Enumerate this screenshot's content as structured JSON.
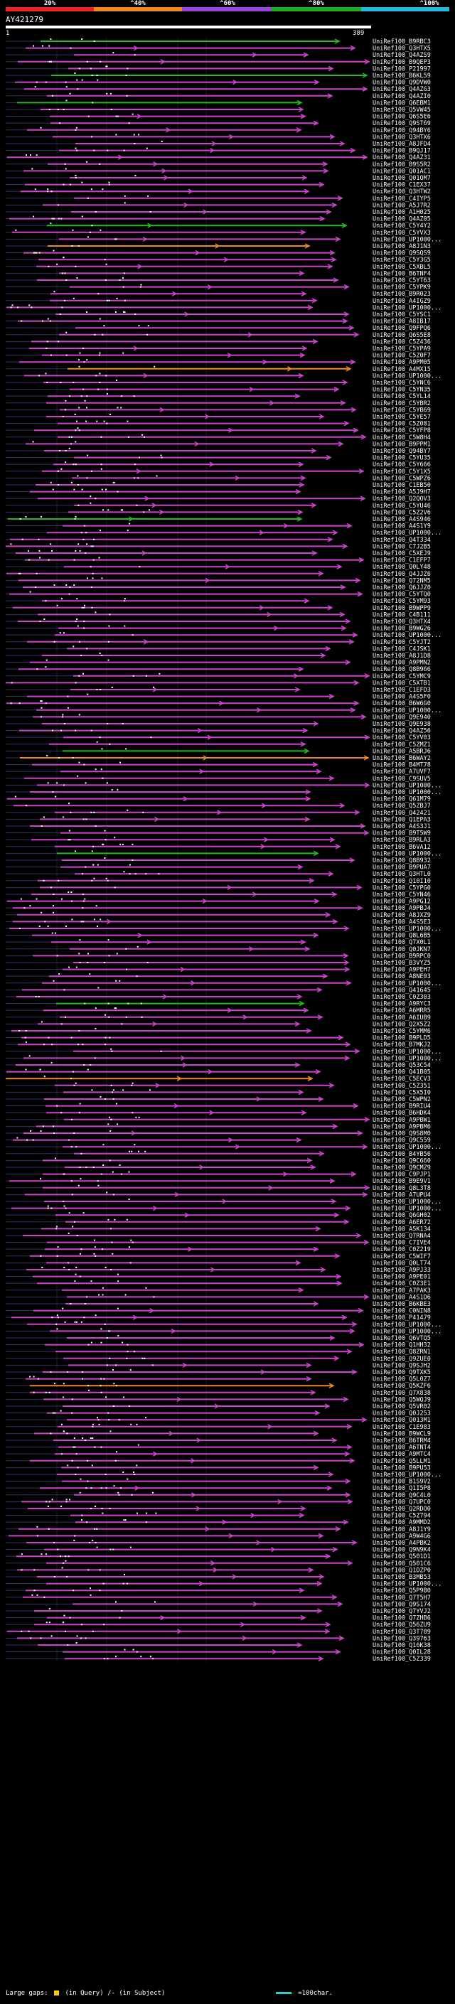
{
  "scale": {
    "labels": [
      "20%",
      "^40%",
      "^60%",
      "^80%",
      "^100%"
    ],
    "colors": [
      "#ee2222",
      "#ee8822",
      "#9944dd",
      "#22aa22",
      "#22bbdd"
    ]
  },
  "query": {
    "id": "AY421279",
    "start": "1",
    "end": "389"
  },
  "colors": {
    "background": "#000000",
    "hit": "#cc44cc",
    "hit_high": "#22bb22",
    "hit_mid": "#ee8822",
    "gap": "#333366",
    "marker": "#ffffff"
  },
  "footer": {
    "large_gaps_label": "Large gaps:",
    "in_query": "(in Query)",
    "in_subject": "/- (in Subject)",
    "scale_label": "=100char."
  },
  "hits": [
    "UniRef100_B9RBC3",
    "UniRef100_Q3HTX5",
    "UniRef100_Q4AZS9",
    "UniRef100_B9QEP3",
    "UniRef100_P21997",
    "UniRef100_B6KL59",
    "UniRef100_Q9DVW0",
    "UniRef100_Q4AZG3",
    "UniRef100_Q4AZI0",
    "UniRef100_Q6EBM1",
    "UniRef100_Q5VW45",
    "UniRef100_Q6S5E6",
    "UniRef100_Q9ST69",
    "UniRef100_Q94BY6",
    "UniRef100_Q3HTX6",
    "UniRef100_A8JFD4",
    "UniRef100_B9QJ17",
    "UniRef100_Q4AZ31",
    "UniRef100_B9S5R2",
    "UniRef100_Q01AC1",
    "UniRef100_Q01OM7",
    "UniRef100_C1EX37",
    "UniRef100_Q3HTW2",
    "UniRef100_C4IYP5",
    "UniRef100_A5J7R2",
    "UniRef100_A1H025",
    "UniRef100_Q4AZ05",
    "UniRef100_C5Y4Y2",
    "UniRef100_C5YVX3",
    "UniRef100_UP1000...",
    "UniRef100_A8J1N3",
    "UniRef100_Q9SQS9",
    "UniRef100_C5Y3G5",
    "UniRef100_C5XBL5",
    "UniRef100_B6TNF4",
    "UniRef100_C5YT63",
    "UniRef100_C5YPK9",
    "UniRef100_B9R023",
    "UniRef100_A4IGZ9",
    "UniRef100_UP1000...",
    "UniRef100_C5YSC1",
    "UniRef100_A8IB17",
    "UniRef100_Q9FPQ6",
    "UniRef100_Q6S5E8",
    "UniRef100_C5Z436",
    "UniRef100_C5YPA9",
    "UniRef100_C5Z0F7",
    "UniRef100_A9PM05",
    "UniRef100_A4MX15",
    "UniRef100_UP1000...",
    "UniRef100_C5YNC6",
    "UniRef100_C5YN35",
    "UniRef100_C5YL14",
    "UniRef100_C5YBR2",
    "UniRef100_C5YB69",
    "UniRef100_C5YE57",
    "UniRef100_C5Z081",
    "UniRef100_C5YFP8",
    "UniRef100_C5W8H4",
    "UniRef100_B9PPM1",
    "UniRef100_Q94BY7",
    "UniRef100_C5YU35",
    "UniRef100_C5Y666",
    "UniRef100_C5Y1X5",
    "UniRef100_C5WPZ6",
    "UniRef100_C1EB50",
    "UniRef100_A5J9H7",
    "UniRef100_Q2QOV3",
    "UniRef100_C5YU46",
    "UniRef100_C5Z2V6",
    "UniRef100_A4S946",
    "UniRef100_A4S1Y9",
    "UniRef100_UP1000...",
    "UniRef100_Q4T334",
    "UniRef100_C7J2B5",
    "UniRef100_C5XEJ9",
    "UniRef100_C1EFP7",
    "UniRef100_Q0LY48",
    "UniRef100_Q4JJZ6",
    "UniRef100_Q72NM5",
    "UniRef100_Q6JJZ0",
    "UniRef100_C5YTQ0",
    "UniRef100_C5YM93",
    "UniRef100_B9WPP9",
    "UniRef100_C4B111",
    "UniRef100_Q3HTX4",
    "UniRef100_B9WG26",
    "UniRef100_UP1000...",
    "UniRef100_C5YJT2",
    "UniRef100_C4JSK1",
    "UniRef100_A8J1D8",
    "UniRef100_A9PMN2",
    "UniRef100_Q8B966",
    "UniRef100_C5YMC9",
    "UniRef100_C5XTB1",
    "UniRef100_C1EFD3",
    "UniRef100_A4S5F0",
    "UniRef100_B6W6G0",
    "UniRef100_UP1000...",
    "UniRef100_Q9E940",
    "UniRef100_Q9E938",
    "UniRef100_Q4AZ56",
    "UniRef100_C5YV03",
    "UniRef100_C5ZMZ1",
    "UniRef100_A5BRJ6",
    "UniRef100_B6WAY2",
    "UniRef100_B4MT78",
    "UniRef100_A7UVF7",
    "UniRef100_C9SUV5",
    "UniRef100_UP1000...",
    "UniRef100_UP1000...",
    "UniRef100_Q61M79",
    "UniRef100_Q5ZBJ7",
    "UniRef100_Q42421",
    "UniRef100_Q1EPA3",
    "UniRef100_A4S3J1",
    "UniRef100_B9T5W9",
    "UniRef100_B9RLA3",
    "UniRef100_B6VA12",
    "UniRef100_UP1000...",
    "UniRef100_Q8B932",
    "UniRef100_B9PUA7",
    "UniRef100_Q3HTL0",
    "UniRef100_Q10I10",
    "UniRef100_C5YPG0",
    "UniRef100_C5YN46",
    "UniRef100_A9PG12",
    "UniRef100_A9PBJ4",
    "UniRef100_A8JXZ9",
    "UniRef100_A4S5E3",
    "UniRef100_UP1000...",
    "UniRef100_Q8L6B5",
    "UniRef100_Q7X0L1",
    "UniRef100_Q0JKN7",
    "UniRef100_B9RPC0",
    "UniRef100_B3VYZ5",
    "UniRef100_A9PEH7",
    "UniRef100_A8NE03",
    "UniRef100_UP1000...",
    "UniRef100_Q41645",
    "UniRef100_C0Z303",
    "UniRef100_A9RYC3",
    "UniRef100_A6MRR5",
    "UniRef100_A6IUB9",
    "UniRef100_Q2X5Z2",
    "UniRef100_C5YMM6",
    "UniRef100_B9PLD5",
    "UniRef100_B7MKJ2",
    "UniRef100_UP1000...",
    "UniRef100_UP1000...",
    "UniRef100_Q53C54",
    "UniRef100_Q41B05",
    "UniRef100_C5ECV3",
    "UniRef100_C5Z351",
    "UniRef100_C5X5I0",
    "UniRef100_C5WPN2",
    "UniRef100_B9RIU4",
    "UniRef100_B6HDK4",
    "UniRef100_A9PBW1",
    "UniRef100_A9PBM6",
    "UniRef100_Q9S8M0",
    "UniRef100_Q9C559",
    "UniRef100_UP1000...",
    "UniRef100_B4YB56",
    "UniRef100_Q9C660",
    "UniRef100_Q9CMZ9",
    "UniRef100_C9PJP1",
    "UniRef100_B9E9V1",
    "UniRef100_Q8L3T8",
    "UniRef100_A7UPU4",
    "UniRef100_UP1000...",
    "UniRef100_UP1000...",
    "UniRef100_Q6GH02",
    "UniRef100_A6ER72",
    "UniRef100_A5K134",
    "UniRef100_Q7RNA4",
    "UniRef100_C7IVE4",
    "UniRef100_C0Z219",
    "UniRef100_C5WIF7",
    "UniRef100_Q0LT74",
    "UniRef100_A9PJ33",
    "UniRef100_A9PE01",
    "UniRef100_C0Z3E1",
    "UniRef100_A7PAK3",
    "UniRef100_A4S1D6",
    "UniRef100_B6KBE3",
    "UniRef100_C0NIN8",
    "UniRef100_P41479",
    "UniRef100_UP1000...",
    "UniRef100_UP1000...",
    "UniRef100_Q6VTQ5",
    "UniRef100_Q1HH32",
    "UniRef100_Q8ZRN1",
    "UniRef100_Q9ZUE0",
    "UniRef100_Q9SJH2",
    "UniRef100_Q9TXK5",
    "UniRef100_Q5L0Z7",
    "UniRef100_Q5KZF6",
    "UniRef100_Q7X838",
    "UniRef100_Q5WQJ9",
    "UniRef100_Q5VR02",
    "UniRef100_Q0J253",
    "UniRef100_Q013M1",
    "UniRef100_C1E983",
    "UniRef100_B9WCL9",
    "UniRef100_B6TRM4",
    "UniRef100_A6TNT4",
    "UniRef100_A9MTC4",
    "UniRef100_Q5LLM1",
    "UniRef100_B9PU53",
    "UniRef100_UP1000...",
    "UniRef100_B1S9V2",
    "UniRef100_Q1I5P8",
    "UniRef100_Q9C4L0",
    "UniRef100_Q7UPC0",
    "UniRef100_Q2RDO0",
    "UniRef100_C5Z794",
    "UniRef100_A9MMD2",
    "UniRef100_A8J1Y9",
    "UniRef100_A9W4G6",
    "UniRef100_A4PBK2",
    "UniRef100_Q9N9K4",
    "UniRef100_Q501D1",
    "UniRef100_Q501C6",
    "UniRef100_Q1DZP0",
    "UniRef100_B3MB53",
    "UniRef100_UP1000...",
    "UniRef100_Q5P9B0",
    "UniRef100_Q7T5H7",
    "UniRef100_Q9S174",
    "UniRef100_Q7YVJ2",
    "UniRef100_Q7ZHB6",
    "UniRef100_Q56ZU9",
    "UniRef100_Q3T789",
    "UniRef100_Q39763",
    "UniRef100_Q16K38",
    "UniRef100_Q0IL28",
    "UniRef100_C5Z339"
  ]
}
